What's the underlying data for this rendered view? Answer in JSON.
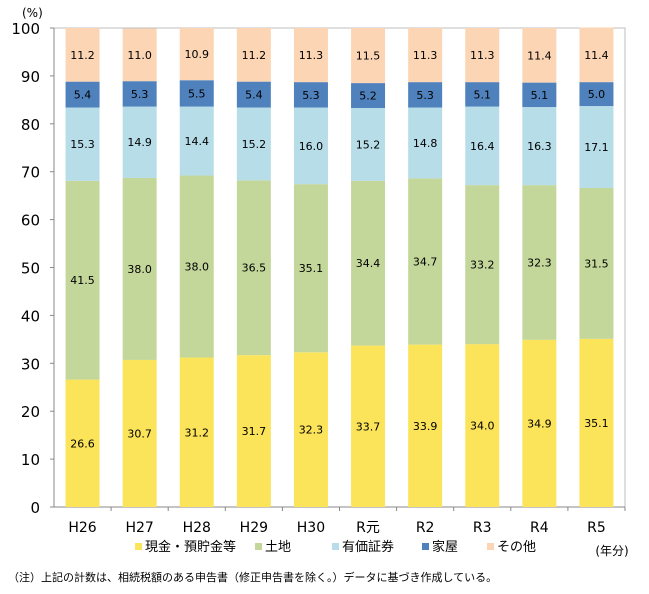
{
  "chart_data": {
    "type": "bar",
    "stacked": true,
    "percent_stacked": true,
    "ylabel": "(%)",
    "xlabel": "(年分)",
    "ylim": [
      0,
      100
    ],
    "yticks": [
      0,
      10,
      20,
      30,
      40,
      50,
      60,
      70,
      80,
      90,
      100
    ],
    "grid": false,
    "legend_position": "bottom",
    "categories": [
      "H26",
      "H27",
      "H28",
      "H29",
      "H30",
      "R元",
      "R2",
      "R3",
      "R4",
      "R5"
    ],
    "series": [
      {
        "name": "現金・預貯金等",
        "color": "#fbe45a",
        "values": [
          26.6,
          30.7,
          31.2,
          31.7,
          32.3,
          33.7,
          33.9,
          34.0,
          34.9,
          35.1
        ]
      },
      {
        "name": "土地",
        "color": "#c4d79b",
        "values": [
          41.5,
          38.0,
          38.0,
          36.5,
          35.1,
          34.4,
          34.7,
          33.2,
          32.3,
          31.5
        ]
      },
      {
        "name": "有価証券",
        "color": "#b7dde8",
        "values": [
          15.3,
          14.9,
          14.4,
          15.2,
          16.0,
          15.2,
          14.8,
          16.4,
          16.3,
          17.1
        ]
      },
      {
        "name": "家屋",
        "color": "#4f81bd",
        "values": [
          5.4,
          5.3,
          5.5,
          5.4,
          5.3,
          5.2,
          5.3,
          5.1,
          5.1,
          5.0
        ]
      },
      {
        "name": "その他",
        "color": "#fcd5b4",
        "values": [
          11.2,
          11.0,
          10.9,
          11.2,
          11.3,
          11.5,
          11.3,
          11.3,
          11.4,
          11.4
        ]
      }
    ]
  },
  "note": "（注）上記の計数は、相続税額のある申告書（修正申告書を除く。）データに基づき作成している。"
}
